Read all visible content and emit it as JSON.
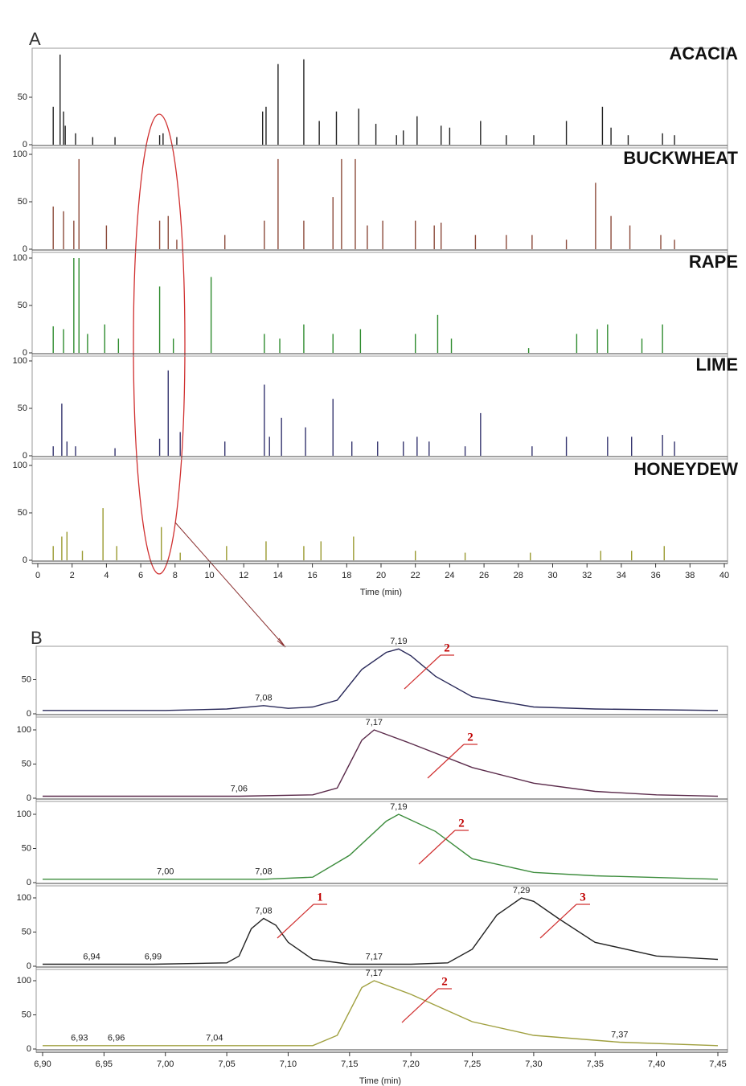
{
  "panels": [
    "A",
    "B"
  ],
  "annotations": [
    "2",
    "2",
    "2",
    "1",
    "3",
    "2"
  ],
  "chart_data": [
    {
      "type": "stem",
      "title": "ACACIA",
      "color": "#222222",
      "xlim": [
        0,
        40
      ],
      "ylim": [
        0,
        100
      ],
      "yticks": [
        0,
        50
      ],
      "x": [
        0.9,
        1.3,
        1.5,
        1.6,
        2.2,
        3.2,
        4.5,
        7.1,
        7.3,
        8.1,
        13.1,
        13.3,
        14.0,
        15.5,
        16.4,
        17.4,
        18.7,
        19.7,
        20.9,
        21.3,
        22.1,
        23.5,
        24.0,
        25.8,
        27.3,
        28.9,
        30.8,
        32.9,
        33.4,
        34.4,
        36.4,
        37.1
      ],
      "values": [
        40,
        95,
        35,
        20,
        12,
        8,
        8,
        10,
        12,
        8,
        35,
        40,
        85,
        90,
        25,
        35,
        38,
        22,
        10,
        15,
        30,
        20,
        18,
        25,
        10,
        10,
        25,
        40,
        18,
        10,
        12,
        10
      ]
    },
    {
      "type": "stem",
      "title": "BUCKWHEAT",
      "color": "#8b4a3a",
      "xlim": [
        0,
        40
      ],
      "ylim": [
        0,
        100
      ],
      "yticks": [
        0,
        50,
        100
      ],
      "x": [
        0.9,
        1.5,
        2.1,
        2.4,
        4.0,
        7.1,
        7.6,
        8.1,
        10.9,
        13.2,
        14.0,
        15.5,
        17.2,
        17.7,
        18.5,
        19.2,
        20.1,
        22.0,
        23.1,
        23.5,
        25.5,
        27.3,
        28.8,
        30.8,
        32.5,
        33.4,
        34.5,
        36.3,
        37.1
      ],
      "values": [
        45,
        40,
        30,
        95,
        25,
        30,
        35,
        10,
        15,
        30,
        95,
        30,
        55,
        95,
        95,
        25,
        30,
        30,
        25,
        28,
        15,
        15,
        15,
        10,
        70,
        35,
        25,
        15,
        10
      ]
    },
    {
      "type": "stem",
      "title": "RAPE",
      "color": "#2e8b2e",
      "xlim": [
        0,
        40
      ],
      "ylim": [
        0,
        100
      ],
      "yticks": [
        0,
        50,
        100
      ],
      "x": [
        0.9,
        1.5,
        2.1,
        2.4,
        2.9,
        3.9,
        4.7,
        7.1,
        7.9,
        10.1,
        13.2,
        14.1,
        15.5,
        17.2,
        18.8,
        22.0,
        23.3,
        24.1,
        28.6,
        31.4,
        32.6,
        33.2,
        35.2,
        36.4
      ],
      "values": [
        28,
        25,
        100,
        100,
        20,
        30,
        15,
        70,
        15,
        80,
        20,
        15,
        30,
        20,
        25,
        20,
        40,
        15,
        5,
        20,
        25,
        30,
        15,
        30
      ]
    },
    {
      "type": "stem",
      "title": "LIME",
      "color": "#34346e",
      "xlim": [
        0,
        40
      ],
      "ylim": [
        0,
        100
      ],
      "yticks": [
        0,
        50,
        100
      ],
      "x": [
        0.9,
        1.4,
        1.7,
        2.2,
        4.5,
        7.1,
        7.6,
        8.3,
        10.9,
        13.2,
        13.5,
        14.2,
        15.6,
        17.2,
        18.3,
        19.8,
        21.3,
        22.1,
        22.8,
        24.9,
        25.8,
        28.8,
        30.8,
        33.2,
        34.6,
        36.4,
        37.1
      ],
      "values": [
        10,
        55,
        15,
        10,
        8,
        18,
        90,
        25,
        15,
        75,
        20,
        40,
        30,
        60,
        15,
        15,
        15,
        20,
        15,
        10,
        45,
        10,
        20,
        20,
        20,
        22,
        15
      ]
    },
    {
      "type": "stem",
      "title": "HONEYDEW",
      "color": "#9a9a30",
      "xlim": [
        0,
        40
      ],
      "ylim": [
        0,
        100
      ],
      "yticks": [
        0,
        50,
        100
      ],
      "x": [
        0.9,
        1.4,
        1.7,
        2.6,
        3.8,
        4.6,
        7.2,
        8.3,
        11.0,
        13.3,
        15.5,
        16.5,
        18.4,
        22.0,
        24.9,
        28.7,
        32.8,
        34.6,
        36.5
      ],
      "values": [
        15,
        25,
        30,
        10,
        55,
        15,
        35,
        8,
        15,
        20,
        15,
        20,
        25,
        10,
        8,
        8,
        10,
        10,
        15
      ],
      "xticks": [
        0,
        2,
        4,
        6,
        8,
        10,
        12,
        14,
        16,
        18,
        20,
        22,
        24,
        26,
        28,
        30,
        32,
        34,
        36,
        38,
        40
      ],
      "xlabel": "Time (min)"
    },
    {
      "type": "line",
      "color": "#2a2a5a",
      "xlim": [
        6.9,
        7.45
      ],
      "ylim": [
        0,
        100
      ],
      "yticks": [
        0,
        50
      ],
      "x": [
        6.9,
        7.0,
        7.05,
        7.08,
        7.1,
        7.12,
        7.14,
        7.16,
        7.18,
        7.19,
        7.2,
        7.22,
        7.25,
        7.3,
        7.35,
        7.45
      ],
      "values": [
        5,
        5,
        7,
        12,
        8,
        10,
        20,
        65,
        90,
        95,
        85,
        55,
        25,
        10,
        7,
        5
      ],
      "peaks": [
        {
          "value": 7.08,
          "label": "7,08"
        },
        {
          "value": 7.19,
          "label": "7,19"
        }
      ]
    },
    {
      "type": "line",
      "color": "#5a2a4a",
      "xlim": [
        6.9,
        7.45
      ],
      "ylim": [
        0,
        100
      ],
      "yticks": [
        0,
        50,
        100
      ],
      "x": [
        6.9,
        7.06,
        7.12,
        7.14,
        7.15,
        7.16,
        7.17,
        7.2,
        7.25,
        7.3,
        7.35,
        7.4,
        7.45
      ],
      "values": [
        3,
        3,
        5,
        15,
        50,
        85,
        100,
        80,
        45,
        22,
        10,
        5,
        3
      ],
      "peaks": [
        {
          "value": 7.06,
          "label": "7,06"
        },
        {
          "value": 7.17,
          "label": "7,17"
        }
      ]
    },
    {
      "type": "line",
      "color": "#3c8c3c",
      "xlim": [
        6.9,
        7.45
      ],
      "ylim": [
        0,
        100
      ],
      "yticks": [
        0,
        50,
        100
      ],
      "x": [
        6.9,
        7.0,
        7.08,
        7.12,
        7.15,
        7.18,
        7.19,
        7.22,
        7.25,
        7.3,
        7.35,
        7.45
      ],
      "values": [
        5,
        5,
        5,
        8,
        40,
        90,
        100,
        75,
        35,
        15,
        10,
        5
      ],
      "peaks": [
        {
          "value": 7.0,
          "label": "7,00"
        },
        {
          "value": 7.08,
          "label": "7,08"
        },
        {
          "value": 7.19,
          "label": "7,19"
        }
      ]
    },
    {
      "type": "line",
      "color": "#222222",
      "xlim": [
        6.9,
        7.45
      ],
      "ylim": [
        0,
        100
      ],
      "yticks": [
        0,
        50,
        100
      ],
      "x": [
        6.9,
        6.94,
        6.99,
        7.05,
        7.06,
        7.07,
        7.08,
        7.09,
        7.1,
        7.12,
        7.15,
        7.17,
        7.2,
        7.23,
        7.25,
        7.27,
        7.29,
        7.3,
        7.32,
        7.35,
        7.4,
        7.45
      ],
      "values": [
        3,
        3,
        3,
        5,
        15,
        55,
        70,
        60,
        35,
        10,
        3,
        3,
        3,
        5,
        25,
        75,
        100,
        95,
        70,
        35,
        15,
        10
      ],
      "peaks": [
        {
          "value": 6.94,
          "label": "6,94"
        },
        {
          "value": 6.99,
          "label": "6,99"
        },
        {
          "value": 7.08,
          "label": "7,08"
        },
        {
          "value": 7.17,
          "label": "7,17"
        },
        {
          "value": 7.29,
          "label": "7,29"
        }
      ]
    },
    {
      "type": "line",
      "color": "#a0a040",
      "xlim": [
        6.9,
        7.45
      ],
      "ylim": [
        0,
        100
      ],
      "yticks": [
        0,
        50,
        100
      ],
      "x": [
        6.9,
        7.04,
        7.12,
        7.14,
        7.16,
        7.17,
        7.2,
        7.25,
        7.3,
        7.37,
        7.45
      ],
      "values": [
        5,
        5,
        5,
        20,
        90,
        100,
        80,
        40,
        20,
        10,
        5
      ],
      "peaks": [
        {
          "value": 6.93,
          "label": "6,93"
        },
        {
          "value": 6.96,
          "label": "6,96"
        },
        {
          "value": 7.04,
          "label": "7,04"
        },
        {
          "value": 7.17,
          "label": "7,17"
        },
        {
          "value": 7.37,
          "label": "7,37"
        }
      ],
      "xticks": [
        {
          "value": 6.9,
          "label": "6,90"
        },
        {
          "value": 6.95,
          "label": "6,95"
        },
        {
          "value": 7.0,
          "label": "7,00"
        },
        {
          "value": 7.05,
          "label": "7,05"
        },
        {
          "value": 7.1,
          "label": "7,10"
        },
        {
          "value": 7.15,
          "label": "7,15"
        },
        {
          "value": 7.2,
          "label": "7,20"
        },
        {
          "value": 7.25,
          "label": "7,25"
        },
        {
          "value": 7.3,
          "label": "7,30"
        },
        {
          "value": 7.35,
          "label": "7,35"
        },
        {
          "value": 7.4,
          "label": "7,40"
        },
        {
          "value": 7.45,
          "label": "7,45"
        }
      ],
      "xlabel": "Time (min)"
    }
  ]
}
